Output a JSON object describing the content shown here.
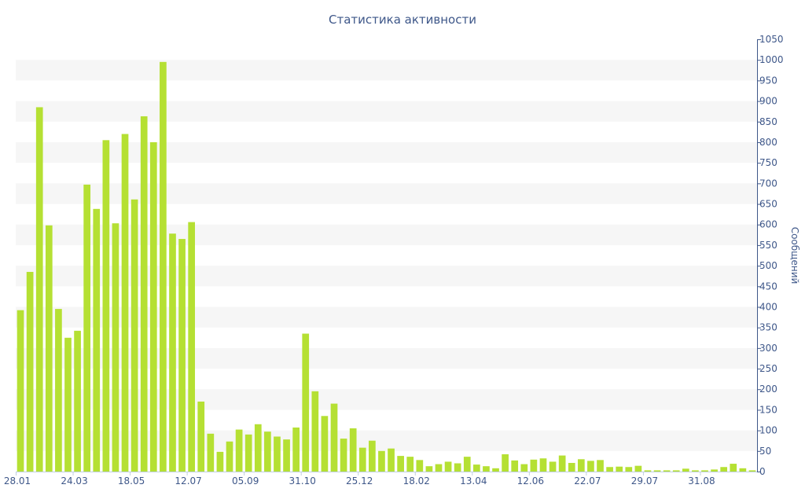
{
  "chart_data": {
    "type": "bar",
    "title": "Статистика активности",
    "ylabel": "Сообщений",
    "ylim": [
      0,
      1050
    ],
    "ytick_step": 50,
    "y_axis_side": "right",
    "grid": "alternating horizontal bands",
    "bar_color": "#b5e033",
    "band_color": "#f6f6f6",
    "axis_color": "#3e5789",
    "x_tick_labels": [
      "28.01",
      "24.03",
      "18.05",
      "12.07",
      "05.09",
      "31.10",
      "25.12",
      "18.02",
      "13.04",
      "12.06",
      "22.07",
      "29.07",
      "31.08"
    ],
    "x_tick_bar_index": [
      0,
      6,
      12,
      18,
      24,
      30,
      36,
      42,
      48,
      54,
      60,
      66,
      72
    ],
    "values": [
      392,
      485,
      885,
      598,
      395,
      325,
      342,
      697,
      638,
      805,
      603,
      820,
      661,
      863,
      800,
      995,
      578,
      565,
      606,
      170,
      92,
      48,
      73,
      102,
      90,
      115,
      97,
      85,
      78,
      107,
      335,
      195,
      135,
      165,
      80,
      105,
      58,
      75,
      50,
      56,
      38,
      36,
      28,
      13,
      18,
      24,
      20,
      36,
      17,
      13,
      8,
      42,
      27,
      18,
      29,
      32,
      24,
      39,
      21,
      30,
      26,
      28,
      11,
      12,
      11,
      14,
      3,
      3,
      3,
      3,
      7,
      3,
      3,
      5,
      11,
      19,
      8,
      3
    ]
  }
}
